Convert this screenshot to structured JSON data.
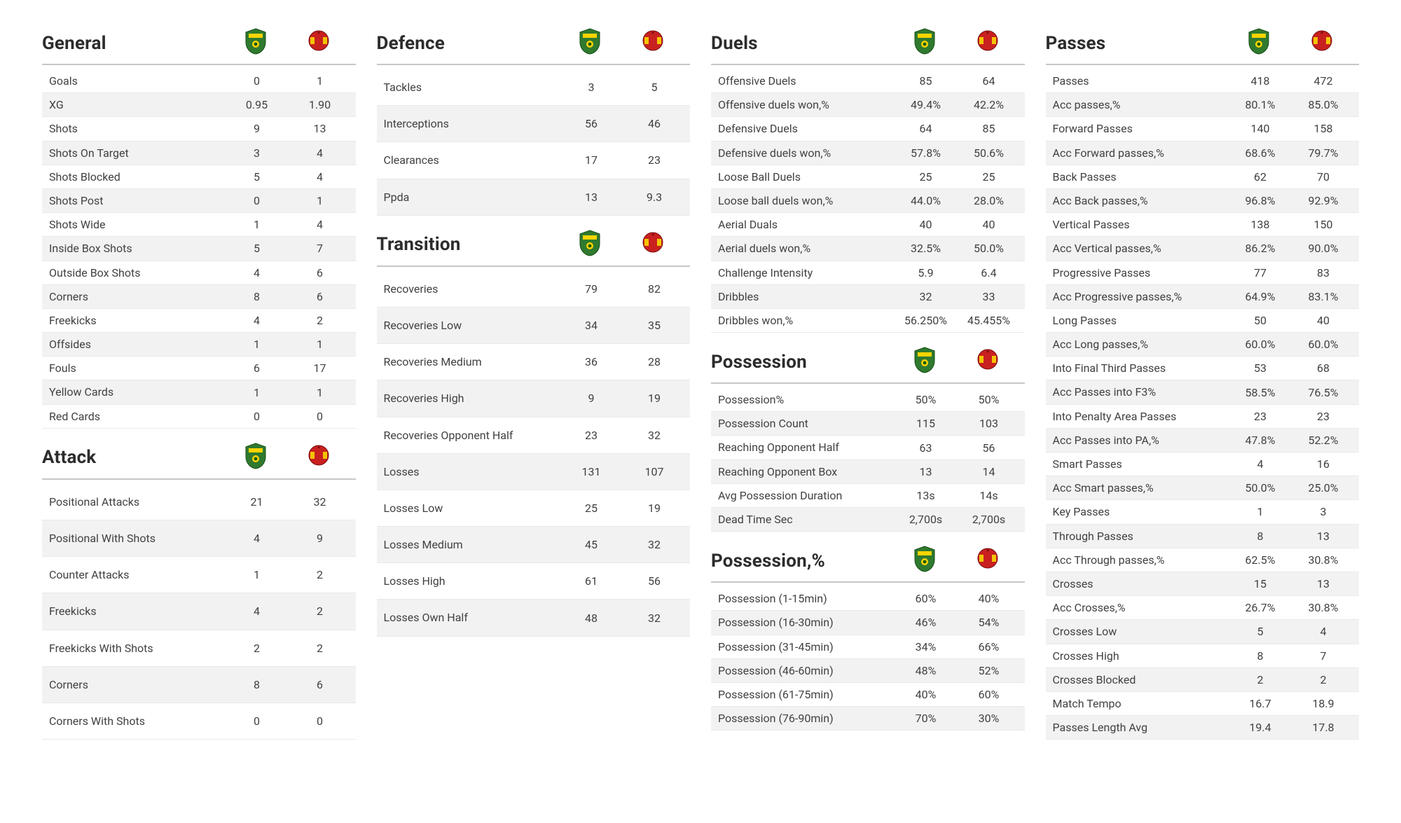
{
  "colors": {
    "bg": "#ffffff",
    "shade": "#f2f2f2",
    "border": "#e9e9e9",
    "header_border": "#c7c7c7",
    "title": "#2c2c2c",
    "text": "#414141",
    "team1_shield": "#2f7a2f",
    "team1_stripe": "#ffd400",
    "team2_fill": "#c92020",
    "team2_accent": "#f5c400"
  },
  "teams": {
    "team1": "norwich-city",
    "team2": "manchester-united"
  },
  "layout": [
    [
      {
        "title": "General",
        "taller": false,
        "rows": [
          {
            "label": "Goals",
            "v1": "0",
            "v2": "1"
          },
          {
            "label": "XG",
            "v1": "0.95",
            "v2": "1.90",
            "shade": true
          },
          {
            "label": "Shots",
            "v1": "9",
            "v2": "13"
          },
          {
            "label": "Shots On Target",
            "v1": "3",
            "v2": "4",
            "shade": true
          },
          {
            "label": "Shots Blocked",
            "v1": "5",
            "v2": "4"
          },
          {
            "label": "Shots Post",
            "v1": "0",
            "v2": "1",
            "shade": true
          },
          {
            "label": "Shots Wide",
            "v1": "1",
            "v2": "4"
          },
          {
            "label": "Inside Box Shots",
            "v1": "5",
            "v2": "7",
            "shade": true
          },
          {
            "label": "Outside Box Shots",
            "v1": "4",
            "v2": "6"
          },
          {
            "label": "Corners",
            "v1": "8",
            "v2": "6",
            "shade": true
          },
          {
            "label": "Freekicks",
            "v1": "4",
            "v2": "2"
          },
          {
            "label": "Offsides",
            "v1": "1",
            "v2": "1",
            "shade": true
          },
          {
            "label": "Fouls",
            "v1": "6",
            "v2": "17"
          },
          {
            "label": "Yellow Cards",
            "v1": "1",
            "v2": "1",
            "shade": true
          },
          {
            "label": "Red Cards",
            "v1": "0",
            "v2": "0"
          }
        ]
      },
      {
        "title": "Attack",
        "taller": true,
        "rows": [
          {
            "label": "Positional Attacks",
            "v1": "21",
            "v2": "32"
          },
          {
            "label": "Positional With Shots",
            "v1": "4",
            "v2": "9",
            "shade": true
          },
          {
            "label": "Counter Attacks",
            "v1": "1",
            "v2": "2"
          },
          {
            "label": "Freekicks",
            "v1": "4",
            "v2": "2",
            "shade": true
          },
          {
            "label": "Freekicks With Shots",
            "v1": "2",
            "v2": "2"
          },
          {
            "label": "Corners",
            "v1": "8",
            "v2": "6",
            "shade": true
          },
          {
            "label": "Corners With Shots",
            "v1": "0",
            "v2": "0"
          }
        ]
      }
    ],
    [
      {
        "title": "Defence",
        "taller": true,
        "rows": [
          {
            "label": "Tackles",
            "v1": "3",
            "v2": "5"
          },
          {
            "label": "Interceptions",
            "v1": "56",
            "v2": "46",
            "shade": true
          },
          {
            "label": "Clearances",
            "v1": "17",
            "v2": "23"
          },
          {
            "label": "Ppda",
            "v1": "13",
            "v2": "9.3",
            "shade": true
          }
        ]
      },
      {
        "title": "Transition",
        "taller": true,
        "rows": [
          {
            "label": "Recoveries",
            "v1": "79",
            "v2": "82"
          },
          {
            "label": "Recoveries Low",
            "v1": "34",
            "v2": "35",
            "shade": true
          },
          {
            "label": "Recoveries Medium",
            "v1": "36",
            "v2": "28"
          },
          {
            "label": "Recoveries High",
            "v1": "9",
            "v2": "19",
            "shade": true
          },
          {
            "label": "Recoveries Opponent Half",
            "v1": "23",
            "v2": "32"
          },
          {
            "label": "Losses",
            "v1": "131",
            "v2": "107",
            "shade": true
          },
          {
            "label": "Losses Low",
            "v1": "25",
            "v2": "19"
          },
          {
            "label": "Losses Medium",
            "v1": "45",
            "v2": "32",
            "shade": true
          },
          {
            "label": "Losses High",
            "v1": "61",
            "v2": "56"
          },
          {
            "label": "Losses Own Half",
            "v1": "48",
            "v2": "32",
            "shade": true
          }
        ]
      }
    ],
    [
      {
        "title": "Duels",
        "taller": false,
        "rows": [
          {
            "label": "Offensive Duels",
            "v1": "85",
            "v2": "64"
          },
          {
            "label": "Offensive duels won,%",
            "v1": "49.4%",
            "v2": "42.2%",
            "shade": true
          },
          {
            "label": "Defensive Duels",
            "v1": "64",
            "v2": "85"
          },
          {
            "label": "Defensive duels won,%",
            "v1": "57.8%",
            "v2": "50.6%",
            "shade": true
          },
          {
            "label": "Loose Ball Duels",
            "v1": "25",
            "v2": "25"
          },
          {
            "label": "Loose ball duels won,%",
            "v1": "44.0%",
            "v2": "28.0%",
            "shade": true
          },
          {
            "label": "Aerial Duals",
            "v1": "40",
            "v2": "40"
          },
          {
            "label": "Aerial duels won,%",
            "v1": "32.5%",
            "v2": "50.0%",
            "shade": true
          },
          {
            "label": "Challenge Intensity",
            "v1": "5.9",
            "v2": "6.4"
          },
          {
            "label": "Dribbles",
            "v1": "32",
            "v2": "33",
            "shade": true
          },
          {
            "label": "Dribbles won,%",
            "v1": "56.250%",
            "v2": "45.455%"
          }
        ]
      },
      {
        "title": "Possession",
        "taller": false,
        "rows": [
          {
            "label": "Possession%",
            "v1": "50%",
            "v2": "50%"
          },
          {
            "label": "Possession Count",
            "v1": "115",
            "v2": "103",
            "shade": true
          },
          {
            "label": "Reaching Opponent Half",
            "v1": "63",
            "v2": "56"
          },
          {
            "label": "Reaching Opponent Box",
            "v1": "13",
            "v2": "14",
            "shade": true
          },
          {
            "label": "Avg Possession Duration",
            "v1": "13s",
            "v2": "14s"
          },
          {
            "label": "Dead Time Sec",
            "v1": "2,700s",
            "v2": "2,700s",
            "shade": true
          }
        ]
      },
      {
        "title": "Possession,%",
        "taller": false,
        "rows": [
          {
            "label": "Possession (1-15min)",
            "v1": "60%",
            "v2": "40%"
          },
          {
            "label": "Possession (16-30min)",
            "v1": "46%",
            "v2": "54%",
            "shade": true
          },
          {
            "label": "Possession (31-45min)",
            "v1": "34%",
            "v2": "66%"
          },
          {
            "label": "Possession (46-60min)",
            "v1": "48%",
            "v2": "52%",
            "shade": true
          },
          {
            "label": "Possession (61-75min)",
            "v1": "40%",
            "v2": "60%"
          },
          {
            "label": "Possession (76-90min)",
            "v1": "70%",
            "v2": "30%",
            "shade": true
          }
        ]
      }
    ],
    [
      {
        "title": "Passes",
        "taller": false,
        "rows": [
          {
            "label": "Passes",
            "v1": "418",
            "v2": "472"
          },
          {
            "label": "Acc passes,%",
            "v1": "80.1%",
            "v2": "85.0%",
            "shade": true
          },
          {
            "label": "Forward Passes",
            "v1": "140",
            "v2": "158"
          },
          {
            "label": "Acc Forward passes,%",
            "v1": "68.6%",
            "v2": "79.7%",
            "shade": true
          },
          {
            "label": "Back Passes",
            "v1": "62",
            "v2": "70"
          },
          {
            "label": "Acc Back passes,%",
            "v1": "96.8%",
            "v2": "92.9%",
            "shade": true
          },
          {
            "label": "Vertical Passes",
            "v1": "138",
            "v2": "150"
          },
          {
            "label": "Acc Vertical passes,%",
            "v1": "86.2%",
            "v2": "90.0%",
            "shade": true
          },
          {
            "label": "Progressive Passes",
            "v1": "77",
            "v2": "83"
          },
          {
            "label": "Acc Progressive passes,%",
            "v1": "64.9%",
            "v2": "83.1%",
            "shade": true
          },
          {
            "label": "Long Passes",
            "v1": "50",
            "v2": "40"
          },
          {
            "label": "Acc Long passes,%",
            "v1": "60.0%",
            "v2": "60.0%",
            "shade": true
          },
          {
            "label": "Into Final Third Passes",
            "v1": "53",
            "v2": "68"
          },
          {
            "label": "Acc Passes into F3%",
            "v1": "58.5%",
            "v2": "76.5%",
            "shade": true
          },
          {
            "label": "Into Penalty Area Passes",
            "v1": "23",
            "v2": "23"
          },
          {
            "label": "Acc Passes into PA,%",
            "v1": "47.8%",
            "v2": "52.2%",
            "shade": true
          },
          {
            "label": "Smart Passes",
            "v1": "4",
            "v2": "16"
          },
          {
            "label": "Acc Smart passes,%",
            "v1": "50.0%",
            "v2": "25.0%",
            "shade": true
          },
          {
            "label": "Key Passes",
            "v1": "1",
            "v2": "3"
          },
          {
            "label": "Through Passes",
            "v1": "8",
            "v2": "13",
            "shade": true
          },
          {
            "label": "Acc Through passes,%",
            "v1": "62.5%",
            "v2": "30.8%"
          },
          {
            "label": "Crosses",
            "v1": "15",
            "v2": "13",
            "shade": true
          },
          {
            "label": "Acc Crosses,%",
            "v1": "26.7%",
            "v2": "30.8%"
          },
          {
            "label": "Crosses Low",
            "v1": "5",
            "v2": "4",
            "shade": true
          },
          {
            "label": "Crosses High",
            "v1": "8",
            "v2": "7"
          },
          {
            "label": "Crosses Blocked",
            "v1": "2",
            "v2": "2",
            "shade": true
          },
          {
            "label": "Match Tempo",
            "v1": "16.7",
            "v2": "18.9"
          },
          {
            "label": "Passes Length Avg",
            "v1": "19.4",
            "v2": "17.8",
            "shade": true
          }
        ]
      }
    ]
  ]
}
